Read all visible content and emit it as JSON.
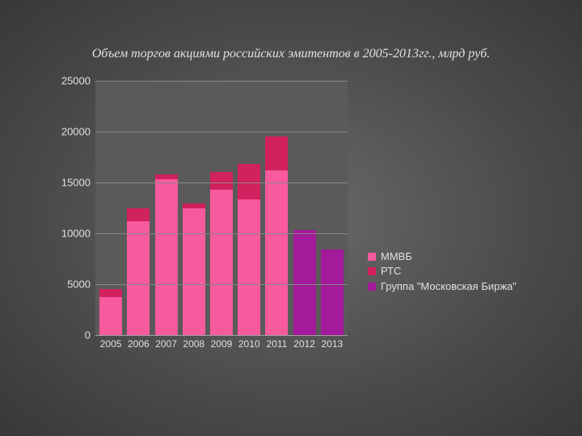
{
  "title": "Объем торгов акциями российских эмитентов в 2005-2013гг., млрд руб.",
  "chart": {
    "type": "stacked-bar",
    "background_color": "#5a5a5a",
    "grid_color": "#888888",
    "text_color": "#e0e0e0",
    "ymin": 0,
    "ymax": 25000,
    "ytick_step": 5000,
    "yticks": [
      {
        "v": 0,
        "label": "0"
      },
      {
        "v": 5000,
        "label": "5000"
      },
      {
        "v": 10000,
        "label": "10000"
      },
      {
        "v": 15000,
        "label": "15000"
      },
      {
        "v": 20000,
        "label": "20000"
      },
      {
        "v": 25000,
        "label": "25000"
      }
    ],
    "categories": [
      "2005",
      "2006",
      "2007",
      "2008",
      "2009",
      "2010",
      "2011",
      "2012",
      "2013"
    ],
    "series": [
      {
        "name": "ММВБ",
        "color": "#f85a9e"
      },
      {
        "name": "РТС",
        "color": "#d1215e"
      },
      {
        "name": "Группа \"Московская Биржа\"",
        "color": "#a31a9a"
      }
    ],
    "stacks": [
      {
        "cat": "2005",
        "segments": [
          {
            "series": 0,
            "value": 3700
          },
          {
            "series": 1,
            "value": 800
          }
        ]
      },
      {
        "cat": "2006",
        "segments": [
          {
            "series": 0,
            "value": 11200
          },
          {
            "series": 1,
            "value": 1300
          }
        ]
      },
      {
        "cat": "2007",
        "segments": [
          {
            "series": 0,
            "value": 15300
          },
          {
            "series": 1,
            "value": 500
          }
        ]
      },
      {
        "cat": "2008",
        "segments": [
          {
            "series": 0,
            "value": 12500
          },
          {
            "series": 1,
            "value": 400
          }
        ]
      },
      {
        "cat": "2009",
        "segments": [
          {
            "series": 0,
            "value": 14300
          },
          {
            "series": 1,
            "value": 1700
          }
        ]
      },
      {
        "cat": "2010",
        "segments": [
          {
            "series": 0,
            "value": 13300
          },
          {
            "series": 1,
            "value": 3500
          }
        ]
      },
      {
        "cat": "2011",
        "segments": [
          {
            "series": 0,
            "value": 16200
          },
          {
            "series": 1,
            "value": 3300
          }
        ]
      },
      {
        "cat": "2012",
        "segments": [
          {
            "series": 2,
            "value": 10300
          }
        ]
      },
      {
        "cat": "2013",
        "segments": [
          {
            "series": 2,
            "value": 8400
          }
        ]
      }
    ]
  }
}
